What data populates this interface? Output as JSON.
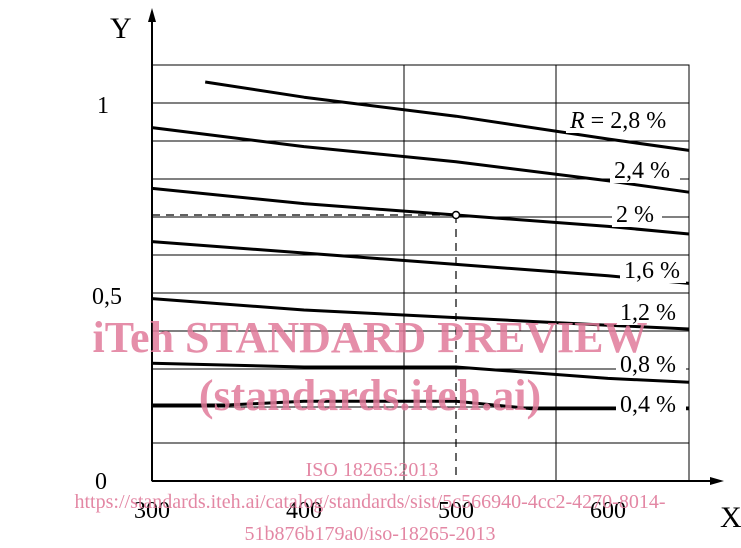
{
  "chart_data": {
    "type": "line",
    "xlabel": "X",
    "ylabel": "Y",
    "xlim": [
      300,
      650
    ],
    "ylim": [
      0,
      1.15
    ],
    "x_ticks": [
      "300",
      "400",
      "500",
      "600"
    ],
    "y_ticks": [
      "0",
      "0,5",
      "1"
    ],
    "grid": true,
    "series": [
      {
        "name": "R = 2,8 %",
        "points": [
          [
            335,
            1.05
          ],
          [
            400,
            1.01
          ],
          [
            500,
            0.96
          ],
          [
            600,
            0.9
          ],
          [
            655,
            0.87
          ]
        ]
      },
      {
        "name": "2,4 %",
        "points": [
          [
            300,
            0.93
          ],
          [
            400,
            0.88
          ],
          [
            500,
            0.84
          ],
          [
            600,
            0.79
          ],
          [
            655,
            0.76
          ]
        ]
      },
      {
        "name": "2 %",
        "points": [
          [
            300,
            0.77
          ],
          [
            400,
            0.73
          ],
          [
            500,
            0.7
          ],
          [
            600,
            0.67
          ],
          [
            655,
            0.65
          ]
        ]
      },
      {
        "name": "1,6 %",
        "points": [
          [
            300,
            0.63
          ],
          [
            400,
            0.6
          ],
          [
            500,
            0.57
          ],
          [
            600,
            0.54
          ],
          [
            655,
            0.52
          ]
        ]
      },
      {
        "name": "1,2 %",
        "points": [
          [
            300,
            0.48
          ],
          [
            400,
            0.45
          ],
          [
            500,
            0.43
          ],
          [
            600,
            0.41
          ],
          [
            655,
            0.4
          ]
        ]
      },
      {
        "name": "0,8 %",
        "points": [
          [
            300,
            0.31
          ],
          [
            400,
            0.3
          ],
          [
            500,
            0.3
          ],
          [
            600,
            0.27
          ],
          [
            655,
            0.26
          ]
        ]
      },
      {
        "name": "0,4 %",
        "points": [
          [
            300,
            0.2
          ],
          [
            350,
            0.2
          ],
          [
            400,
            0.21
          ],
          [
            500,
            0.21
          ],
          [
            550,
            0.19
          ],
          [
            600,
            0.19
          ],
          [
            655,
            0.19
          ]
        ]
      }
    ],
    "reference_point": {
      "x": 500,
      "y": 0.7,
      "series": "2 %"
    }
  },
  "watermark": {
    "line1": "iTeh STANDARD PREVIEW",
    "line2": "(standards.iteh.ai)",
    "line3": "ISO 18265:2013",
    "line4": "https://standards.iteh.ai/catalog/standards/sist/5c566940-4cc2-4270-8014-",
    "line5": "51b876b179a0/iso-18265-2013"
  }
}
